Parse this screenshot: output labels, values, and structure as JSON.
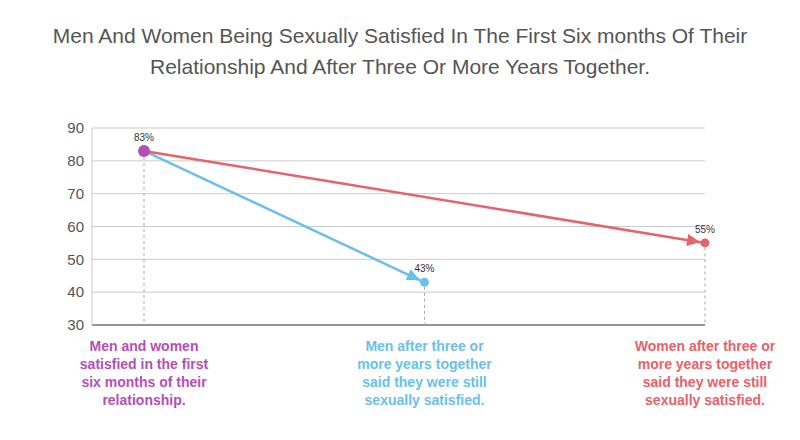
{
  "chart_data": {
    "type": "line",
    "title": "Men And Women Being Sexually Satisfied In The First Six months Of Their Relationship And After Three Or More Years Together.",
    "categories": [
      "Men and women satisfied in the first six months of their relationship.",
      "Men after three or more years together said they were still sexually satisfied.",
      "Women after three or more years together said they were still sexually satisfied."
    ],
    "values": [
      83,
      43,
      55
    ],
    "value_labels": [
      "83%",
      "43%",
      "55%"
    ],
    "colors": [
      "#b44fb8",
      "#6bbfea",
      "#e5636a"
    ],
    "ylim": [
      30,
      90
    ],
    "yticks": [
      30,
      40,
      50,
      60,
      70,
      80,
      90
    ],
    "grid": true,
    "data_labels": true,
    "marker": "circle"
  }
}
